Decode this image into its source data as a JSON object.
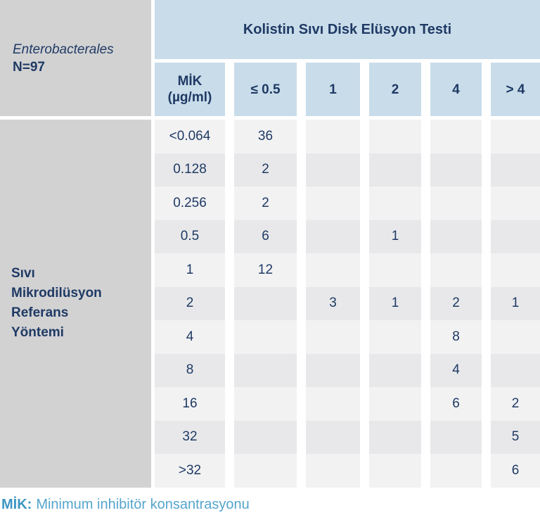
{
  "colors": {
    "gray": "#d2d2d3",
    "blue": "#c9dcea",
    "navy": "#1f3a64",
    "row-light": "#f2f2f3",
    "row-dark": "#e8e8ea",
    "foot-abbr": "#3e96c3",
    "foot-text": "#56a5cc"
  },
  "corner": {
    "organism": "Enterobacterales",
    "n": "N=97"
  },
  "header": {
    "title": "Kolistin Sıvı Disk Elüsyon Testi",
    "columns": [
      {
        "label": "MİK",
        "sub": "(µg/ml)"
      },
      {
        "label": "≤ 0.5"
      },
      {
        "label": "1"
      },
      {
        "label": "2"
      },
      {
        "label": "4"
      },
      {
        "label": "> 4"
      }
    ]
  },
  "table": {
    "row_label_lines": [
      "Sıvı",
      "Mikrodilüsyon",
      "Referans",
      "Yöntemi"
    ],
    "rows": [
      {
        "mic": "<0.064",
        "values": [
          "36",
          "",
          "",
          "",
          ""
        ]
      },
      {
        "mic": "0.128",
        "values": [
          "2",
          "",
          "",
          "",
          ""
        ]
      },
      {
        "mic": "0.256",
        "values": [
          "2",
          "",
          "",
          "",
          ""
        ]
      },
      {
        "mic": "0.5",
        "values": [
          "6",
          "",
          "1",
          "",
          ""
        ]
      },
      {
        "mic": "1",
        "values": [
          "12",
          "",
          "",
          "",
          ""
        ]
      },
      {
        "mic": "2",
        "values": [
          "",
          "3",
          "1",
          "2",
          "1"
        ]
      },
      {
        "mic": "4",
        "values": [
          "",
          "",
          "",
          "8",
          ""
        ]
      },
      {
        "mic": "8",
        "values": [
          "",
          "",
          "",
          "4",
          ""
        ]
      },
      {
        "mic": "16",
        "values": [
          "",
          "",
          "",
          "6",
          "2"
        ]
      },
      {
        "mic": "32",
        "values": [
          "",
          "",
          "",
          "",
          "5"
        ]
      },
      {
        "mic": ">32",
        "values": [
          "",
          "",
          "",
          "",
          "6"
        ]
      }
    ]
  },
  "footer": {
    "abbr": "MİK:",
    "text": "Minimum inhibitör konsantrasyonu"
  }
}
